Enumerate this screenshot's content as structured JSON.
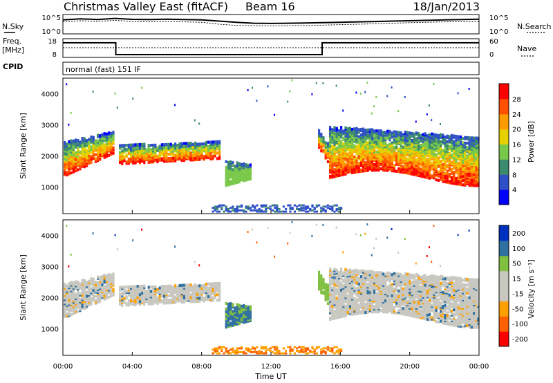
{
  "header": {
    "station": "Christmas Valley East (fitACF)",
    "beam": "Beam 16",
    "date": "18/Jan/2013"
  },
  "panels": {
    "nsky_label": "N.Sky",
    "nsearch_label": "N.Search",
    "freq_label_1": "Freq.",
    "freq_label_2": "[MHz]",
    "nave_label": "Nave",
    "cpid_label": "CPID",
    "cpid_value": "normal (fast) 151 IF"
  },
  "colors": {
    "power": [
      "#0000ff",
      "#3050c8",
      "#3c8a6e",
      "#7ac84a",
      "#e6d000",
      "#ff9a00",
      "#ff5000",
      "#ff0000"
    ],
    "velocity": [
      "#ff0000",
      "#ff6000",
      "#ffa000",
      "#c8c8c0",
      "#c8c8c0",
      "#80c040",
      "#3070a0",
      "#0030c0"
    ]
  },
  "chart_data": [
    {
      "type": "line",
      "name": "noise-panel",
      "y_ticks": [
        "10^5",
        "10^0"
      ],
      "right_ticks": [
        "10^5",
        "10^0"
      ],
      "x": [
        0,
        1,
        2,
        3,
        4,
        5,
        6,
        7,
        8,
        9,
        10,
        11,
        12,
        13,
        14,
        15,
        16,
        17,
        18,
        19,
        20,
        21,
        22,
        23,
        24
      ],
      "series": [
        {
          "values": [
            0.72,
            0.78,
            0.74,
            0.8,
            0.75,
            0.74,
            0.76,
            0.74,
            0.72,
            0.66,
            0.6,
            0.55,
            0.54,
            0.55,
            0.56,
            0.58,
            0.6,
            0.62,
            0.64,
            0.66,
            0.68,
            0.7,
            0.72,
            0.74,
            0.76
          ]
        },
        {
          "values": [
            0.62,
            0.68,
            0.64,
            0.7,
            0.64,
            0.62,
            0.64,
            0.62,
            0.6,
            0.5,
            0.44,
            0.42,
            0.41,
            0.42,
            0.43,
            0.45,
            0.48,
            0.5,
            0.52,
            0.55,
            0.58,
            0.6,
            0.62,
            0.63,
            0.64
          ]
        }
      ]
    },
    {
      "type": "line",
      "name": "frequency-panel",
      "y_ticks": [
        "18",
        "8"
      ],
      "right_ticks": [
        "60",
        "0"
      ],
      "x": [
        0,
        3.05,
        3.05,
        14.95,
        14.95,
        24
      ],
      "series": [
        {
          "values": [
            0.78,
            0.78,
            0.15,
            0.15,
            0.78,
            0.78
          ]
        },
        {
          "values": [
            0.52,
            0.52,
            0.52,
            0.52,
            0.52,
            0.52
          ]
        }
      ]
    },
    {
      "type": "heatmap",
      "name": "power-panel",
      "ylabel": "Slant Range [km]",
      "y_ticks": [
        1000,
        2000,
        3000,
        4000
      ],
      "ylim": [
        150,
        4500
      ],
      "colorbar_label": "Power [dB]",
      "colorbar_ticks": [
        4,
        8,
        12,
        16,
        20,
        24,
        28
      ],
      "colorbar_range": [
        0,
        32
      ]
    },
    {
      "type": "heatmap",
      "name": "velocity-panel",
      "ylabel": "Slant Range [km]",
      "y_ticks": [
        1000,
        2000,
        3000,
        4000
      ],
      "ylim": [
        150,
        4500
      ],
      "colorbar_label": "Velocity [m s⁻¹]",
      "colorbar_ticks": [
        200,
        100,
        50,
        15,
        -15,
        -50,
        -100,
        -200
      ],
      "xlabel": "Time UT",
      "x_ticks": [
        "00:00",
        "04:00",
        "08:00",
        "12:00",
        "16:00",
        "20:00",
        "00:00"
      ],
      "xlim": [
        0,
        24
      ]
    }
  ]
}
